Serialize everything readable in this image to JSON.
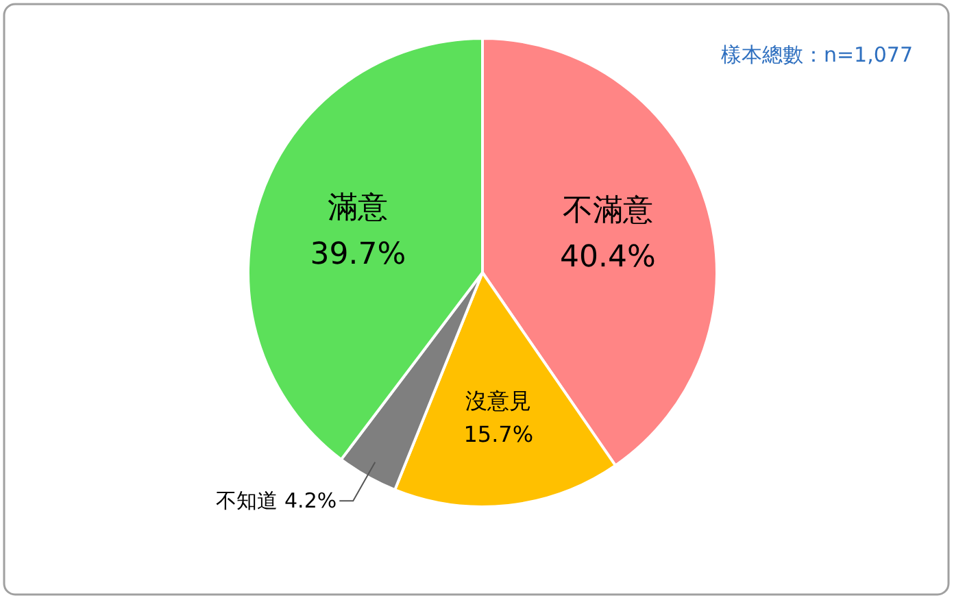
{
  "chart_data": {
    "type": "pie",
    "categories": [
      "不滿意",
      "沒意見",
      "不知道",
      "滿意"
    ],
    "values": [
      40.4,
      15.7,
      4.2,
      39.7
    ],
    "value_labels": [
      "40.4%",
      "15.7%",
      "4.2%",
      "39.7%"
    ],
    "colors": [
      "#ff8585",
      "#ffc000",
      "#7f7f7f",
      "#5ce05a"
    ],
    "annotations": [
      "樣本總數：n=1,077"
    ]
  }
}
